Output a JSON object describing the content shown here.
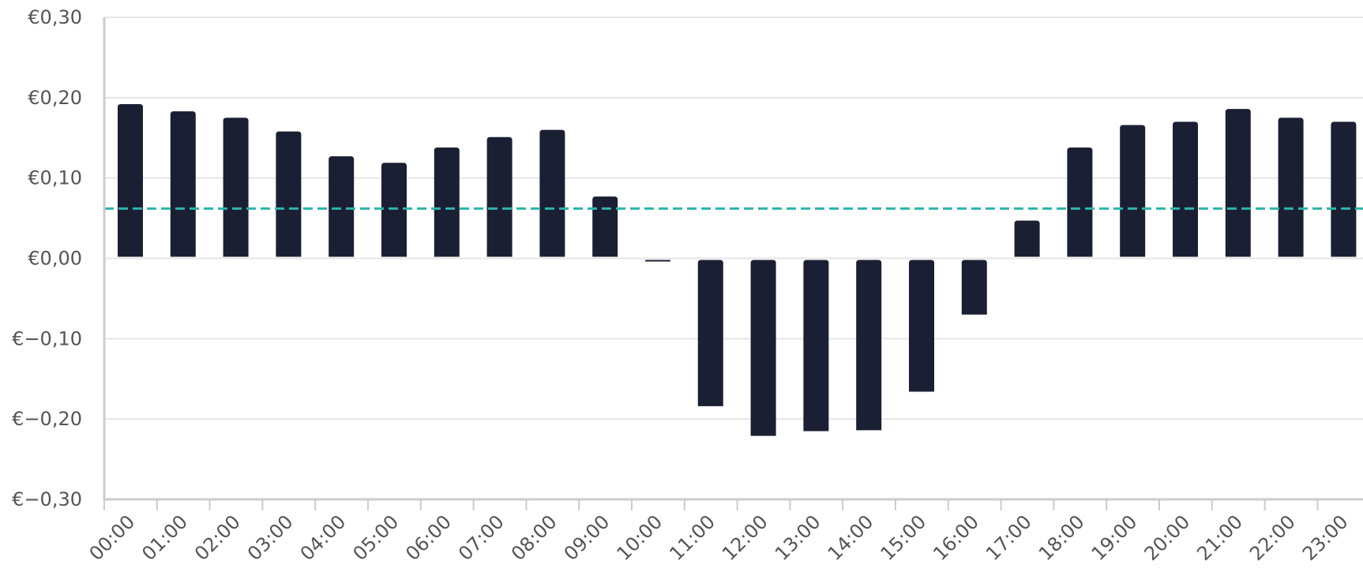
{
  "chart_data": {
    "type": "bar",
    "title": "",
    "xlabel": "",
    "ylabel": "",
    "categories": [
      "00:00",
      "01:00",
      "02:00",
      "03:00",
      "04:00",
      "05:00",
      "06:00",
      "07:00",
      "08:00",
      "09:00",
      "10:00",
      "11:00",
      "12:00",
      "13:00",
      "14:00",
      "15:00",
      "16:00",
      "17:00",
      "18:00",
      "19:00",
      "20:00",
      "21:00",
      "22:00",
      "23:00"
    ],
    "values": [
      0.192,
      0.183,
      0.175,
      0.158,
      0.127,
      0.119,
      0.138,
      0.151,
      0.16,
      0.077,
      -0.003,
      -0.184,
      -0.221,
      -0.215,
      -0.214,
      -0.166,
      -0.07,
      0.047,
      0.138,
      0.166,
      0.17,
      0.186,
      0.175,
      0.17
    ],
    "reference_line": 0.062,
    "ylim": [
      -0.3,
      0.3
    ],
    "y_ticks": [
      {
        "value": 0.3,
        "label": "€0,30"
      },
      {
        "value": 0.2,
        "label": "€0,20"
      },
      {
        "value": 0.1,
        "label": "€0,10"
      },
      {
        "value": 0.0,
        "label": "€0,00"
      },
      {
        "value": -0.1,
        "label": "€−0,10"
      },
      {
        "value": -0.2,
        "label": "€−0,20"
      },
      {
        "value": -0.3,
        "label": "€−0,30"
      }
    ],
    "grid": true,
    "legend": "none",
    "colors": {
      "bar": "#1b1f33",
      "reference_line": "#2cb5ab",
      "grid": "#e6e6e6",
      "axis": "#cccccc",
      "text": "#555555"
    }
  }
}
